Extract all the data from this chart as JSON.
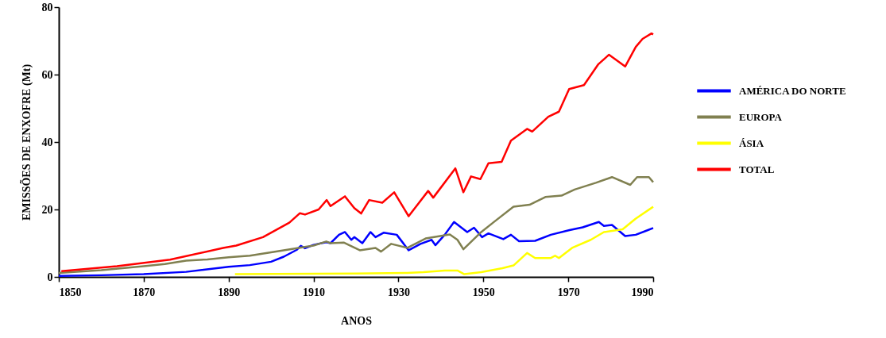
{
  "chart_data": {
    "type": "line",
    "xlabel": "ANOS",
    "ylabel": "EMISSÕES DE ENXOFRE (Mt)",
    "xlim": [
      1850,
      1990
    ],
    "xticks": [
      1850,
      1870,
      1890,
      1910,
      1930,
      1950,
      1970,
      1990
    ],
    "ylim": [
      0,
      80
    ],
    "yticks": [
      0,
      20,
      40,
      60,
      80
    ],
    "grid": false,
    "legend": "right",
    "marker": "none",
    "line_style": "solid",
    "series": [
      {
        "name": "AMÉRICA DO NORTE",
        "color": "#0000ff",
        "x": [
          1850,
          1860,
          1870,
          1880,
          1890,
          1895,
          1900,
          1903,
          1906,
          1907,
          1908,
          1910,
          1913,
          1914,
          1916,
          1917.4,
          1918.9,
          1919.6,
          1921.5,
          1923.4,
          1924.6,
          1926.5,
          1929.6,
          1932.4,
          1935.2,
          1937.8,
          1938.7,
          1940.9,
          1943.1,
          1946.2,
          1947.8,
          1949.7,
          1951.2,
          1954.7,
          1956.5,
          1958.4,
          1962.2,
          1965.9,
          1970.3,
          1973.4,
          1977.2,
          1978.4,
          1980.3,
          1983.4,
          1985.9,
          1988.4,
          1990
        ],
        "values": [
          0.3,
          0.5,
          0.8,
          1.5,
          3,
          3.5,
          4.5,
          6,
          8,
          9.2,
          8.5,
          9.5,
          10.3,
          10,
          12.5,
          13.3,
          11,
          11.8,
          10,
          13.3,
          11.8,
          13.1,
          12.5,
          7.9,
          9.8,
          11,
          9.4,
          12.5,
          16.3,
          13.3,
          14.6,
          11.8,
          12.9,
          11.2,
          12.5,
          10.6,
          10.7,
          12.5,
          13.9,
          14.7,
          16.3,
          15.1,
          15.4,
          12.1,
          12.5,
          13.7,
          14.5
        ]
      },
      {
        "name": "EUROPA",
        "color": "#808050",
        "x": [
          1850,
          1860,
          1870,
          1875,
          1880,
          1885,
          1890,
          1895,
          1900,
          1905,
          1910,
          1913,
          1914,
          1917.1,
          1920.9,
          1924.6,
          1925.9,
          1928.3,
          1932.1,
          1936.4,
          1942.1,
          1943.9,
          1945.3,
          1949.5,
          1952.7,
          1957.1,
          1960.9,
          1964.6,
          1968.4,
          1971.5,
          1976.5,
          1980.3,
          1984.6,
          1986.2,
          1989,
          1990
        ],
        "values": [
          1.2,
          2,
          3.2,
          3.8,
          4.8,
          5.2,
          5.8,
          6.3,
          7.3,
          8.3,
          9.3,
          10.5,
          10,
          10.2,
          7.9,
          8.6,
          7.5,
          9.8,
          8.6,
          11.4,
          12.6,
          11,
          8.2,
          13.3,
          16.5,
          20.8,
          21.4,
          23.7,
          24.1,
          25.9,
          27.9,
          29.6,
          27.3,
          29.6,
          29.6,
          28.1
        ]
      },
      {
        "name": "ÁSIA",
        "color": "#ffff00",
        "x": [
          1891.5,
          1920,
          1932,
          1935.9,
          1940.9,
          1943.9,
          1945.5,
          1949.5,
          1954.5,
          1957.1,
          1960.3,
          1962.2,
          1965.9,
          1966.9,
          1967.8,
          1970.9,
          1975.3,
          1978.4,
          1982.8,
          1985.9,
          1990
        ],
        "values": [
          0.8,
          1,
          1.2,
          1.4,
          1.9,
          1.9,
          0.8,
          1.4,
          2.6,
          3.4,
          7.1,
          5.6,
          5.6,
          6.3,
          5.6,
          8.6,
          11,
          13.3,
          14.1,
          17.3,
          20.8
        ]
      },
      {
        "name": "TOTAL",
        "color": "#ff0000",
        "x": [
          1850.6,
          1863.7,
          1876.2,
          1888.7,
          1891.8,
          1898.1,
          1904.3,
          1906.8,
          1908,
          1911.2,
          1913.1,
          1914,
          1917.4,
          1919.6,
          1921.2,
          1923.1,
          1926.2,
          1929,
          1932.4,
          1937,
          1938.2,
          1943.4,
          1945.3,
          1947.1,
          1949.3,
          1951.2,
          1954.3,
          1956.5,
          1960.3,
          1961.5,
          1965.3,
          1967.8,
          1970.2,
          1973.7,
          1977.1,
          1979.6,
          1983.4,
          1985.9,
          1987.5,
          1989.6,
          1990
        ],
        "values": [
          1.7,
          3.2,
          5.1,
          8.6,
          9.3,
          11.8,
          16.1,
          18.9,
          18.5,
          20,
          22.8,
          21,
          23.9,
          20.4,
          18.8,
          22.8,
          22,
          25.1,
          18,
          25.5,
          23.5,
          32.2,
          25.1,
          29.8,
          29,
          33.7,
          34.1,
          40.4,
          43.9,
          43.1,
          47.5,
          49,
          55.7,
          56.9,
          63.1,
          65.9,
          62.4,
          68.2,
          70.6,
          72.2,
          71.9
        ]
      }
    ]
  }
}
